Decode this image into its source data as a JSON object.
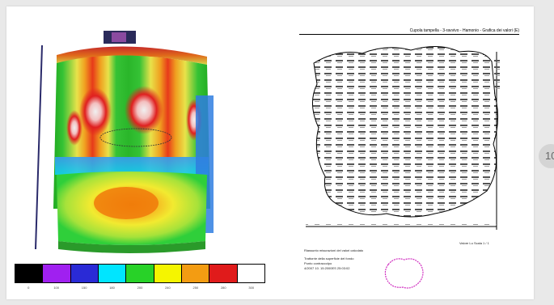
{
  "report": {
    "title": "Cupola tampella - 3-ravvivo - Hamonio - Grafica dei valori (E)",
    "scale_label": "Valore Lu  Scala 1 / 1",
    "note_top": "Riassunto misurazioni del valori calcolato",
    "note_lines": [
      "Trattorrie della superficie del fondo",
      "Punto contraccolpo",
      "4/2007 10. 15:2000ES 25:03:02"
    ]
  },
  "legend": {
    "colors": [
      "#000000",
      "#a020f0",
      "#2a2ad6",
      "#00e5ff",
      "#28d228",
      "#f5f500",
      "#f39c12",
      "#e01b1b",
      "#ffffff"
    ],
    "ticks": [
      "0",
      "100",
      "150",
      "180",
      "200",
      "240",
      "250",
      "280",
      "300"
    ]
  },
  "side_tab": {
    "label": "10"
  },
  "icons": {
    "report_outline": "plant-outline-icon",
    "profile": "profile-outline-icon"
  }
}
